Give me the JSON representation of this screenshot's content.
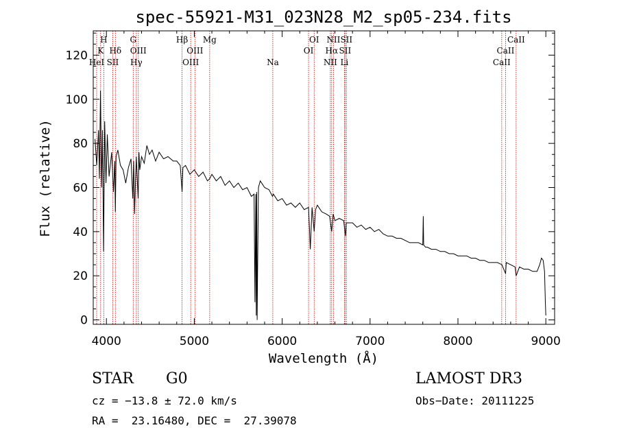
{
  "chart_data": {
    "type": "line",
    "title": "spec-55921-M31_023N28_M2_sp05-234.fits",
    "xlabel": "Wavelength (Å)",
    "ylabel": "Flux (relative)",
    "xlim": [
      3850,
      9100
    ],
    "ylim": [
      -2,
      131
    ],
    "xticks": [
      4000,
      5000,
      6000,
      7000,
      8000,
      9000
    ],
    "yticks": [
      0,
      20,
      40,
      60,
      80,
      100,
      120
    ],
    "series": [
      {
        "name": "flux",
        "color": "#000000",
        "x": [
          3870,
          3890,
          3910,
          3920,
          3933,
          3945,
          3955,
          3968,
          3980,
          3995,
          4010,
          4030,
          4060,
          4080,
          4095,
          4102,
          4110,
          4130,
          4160,
          4190,
          4220,
          4250,
          4280,
          4300,
          4310,
          4320,
          4340,
          4361,
          4370,
          4380,
          4400,
          4430,
          4460,
          4490,
          4520,
          4560,
          4600,
          4650,
          4700,
          4760,
          4800,
          4840,
          4861,
          4870,
          4900,
          4950,
          5000,
          5050,
          5100,
          5150,
          5175,
          5200,
          5250,
          5300,
          5350,
          5400,
          5450,
          5500,
          5550,
          5600,
          5650,
          5680,
          5690,
          5700,
          5705,
          5710,
          5715,
          5720,
          5730,
          5750,
          5800,
          5850,
          5890,
          5900,
          5950,
          6000,
          6050,
          6100,
          6150,
          6200,
          6250,
          6300,
          6320,
          6340,
          6364,
          6380,
          6400,
          6450,
          6500,
          6540,
          6563,
          6580,
          6600,
          6650,
          6700,
          6720,
          6730,
          6800,
          6850,
          6900,
          6950,
          7000,
          7050,
          7100,
          7150,
          7200,
          7250,
          7300,
          7350,
          7400,
          7450,
          7500,
          7550,
          7600,
          7605,
          7610,
          7630,
          7650,
          7700,
          7750,
          7800,
          7850,
          7900,
          7950,
          8000,
          8050,
          8100,
          8150,
          8200,
          8250,
          8300,
          8350,
          8400,
          8450,
          8500,
          8542,
          8550,
          8600,
          8650,
          8662,
          8700,
          8750,
          8800,
          8850,
          8900,
          8930,
          8950,
          8970,
          8985,
          8995,
          9000
        ],
        "values": [
          82,
          70,
          86,
          64,
          104,
          60,
          86,
          31,
          90,
          62,
          84,
          65,
          76,
          58,
          72,
          49,
          74,
          77,
          70,
          68,
          62,
          69,
          73,
          55,
          72,
          48,
          74,
          55,
          76,
          68,
          74,
          71,
          79,
          75,
          77,
          72,
          76,
          73,
          74,
          72,
          72,
          70,
          58,
          69,
          70,
          66,
          68,
          65,
          67,
          63,
          64,
          66,
          63,
          65,
          61,
          63,
          60,
          62,
          59,
          60,
          56,
          57,
          8,
          57,
          2,
          58,
          0,
          21,
          60,
          63,
          60,
          59,
          56,
          57,
          54,
          55,
          52,
          53,
          51,
          53,
          50,
          51,
          32,
          51,
          40,
          50,
          52,
          49,
          48,
          47,
          40,
          48,
          45,
          46,
          45,
          38,
          44,
          44,
          42,
          43,
          41,
          42,
          40,
          41,
          39,
          38,
          38,
          37,
          37,
          36,
          35,
          35,
          35,
          34,
          47,
          34,
          33,
          33,
          32,
          32,
          31,
          31,
          30,
          30,
          29,
          29,
          29,
          28,
          28,
          27,
          27,
          26,
          26,
          26,
          25,
          21,
          26,
          25,
          24,
          20,
          24,
          23,
          23,
          22,
          22,
          25,
          28,
          27,
          22,
          8,
          2
        ]
      }
    ],
    "lines": [
      {
        "wl": 3889,
        "label": "HeI",
        "row": 3
      },
      {
        "wl": 3934,
        "label": "K",
        "row": 2
      },
      {
        "wl": 3970,
        "label": "H",
        "row": 1
      },
      {
        "wl": 4072,
        "label": "SII",
        "row": 3
      },
      {
        "wl": 4102,
        "label": "Hδ",
        "row": 2
      },
      {
        "wl": 4305,
        "label": "G",
        "row": 1
      },
      {
        "wl": 4340,
        "label": "Hγ",
        "row": 3
      },
      {
        "wl": 4363,
        "label": "OIII",
        "row": 2
      },
      {
        "wl": 4861,
        "label": "Hβ",
        "row": 1
      },
      {
        "wl": 4959,
        "label": "OIII",
        "row": 3
      },
      {
        "wl": 5007,
        "label": "OIII",
        "row": 2
      },
      {
        "wl": 5175,
        "label": "Mg",
        "row": 1
      },
      {
        "wl": 5893,
        "label": "Na",
        "row": 3
      },
      {
        "wl": 6300,
        "label": "OI",
        "row": 2
      },
      {
        "wl": 6364,
        "label": "OI",
        "row": 1
      },
      {
        "wl": 6548,
        "label": "NII",
        "row": 3
      },
      {
        "wl": 6563,
        "label": "Hα",
        "row": 2
      },
      {
        "wl": 6583,
        "label": "NII",
        "row": 1
      },
      {
        "wl": 6708,
        "label": "Li",
        "row": 3
      },
      {
        "wl": 6716,
        "label": "SII",
        "row": 2
      },
      {
        "wl": 6731,
        "label": "SII",
        "row": 1
      },
      {
        "wl": 8498,
        "label": "CaII",
        "row": 3
      },
      {
        "wl": 8542,
        "label": "CaII",
        "row": 2
      },
      {
        "wl": 8662,
        "label": "CaII",
        "row": 1
      }
    ],
    "line_marker_color": "#cc0000"
  },
  "info": {
    "class": "STAR",
    "subclass": "G0",
    "survey": "LAMOST DR3",
    "cz": "cz = −13.8 ± 72.0 km/s",
    "obs_date": "Obs−Date: 20111225",
    "radec": "RA =  23.16480, DEC =  27.39078"
  }
}
